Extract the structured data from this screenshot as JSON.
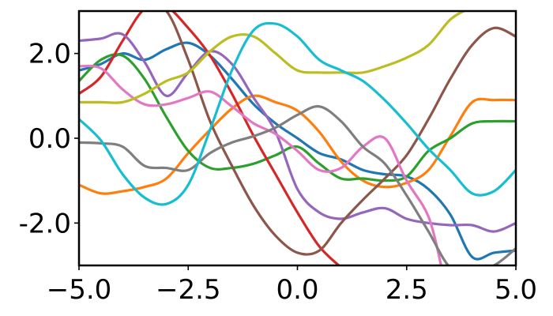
{
  "chart_data": {
    "type": "line",
    "title": "",
    "xlabel": "",
    "ylabel": "",
    "xlim": [
      -5,
      5
    ],
    "ylim": [
      -3,
      3
    ],
    "grid": false,
    "legend": "none",
    "x_ticks": [
      {
        "value": -5.0,
        "label": "−5.0"
      },
      {
        "value": -2.5,
        "label": "−2.5"
      },
      {
        "value": 0.0,
        "label": "0.0"
      },
      {
        "value": 2.5,
        "label": "2.5"
      },
      {
        "value": 5.0,
        "label": "5.0"
      }
    ],
    "y_ticks": [
      {
        "value": -2.0,
        "label": "-2.0"
      },
      {
        "value": 0.0,
        "label": "0.0"
      },
      {
        "value": 2.0,
        "label": "2.0"
      }
    ],
    "series": [
      {
        "color": "#1f77b4",
        "x": [
          -5,
          -4.5,
          -4,
          -3.5,
          -3,
          -2.5,
          -2,
          -1.5,
          -1,
          -0.5,
          0,
          0.5,
          1,
          1.5,
          2,
          2.5,
          3,
          3.5,
          4,
          4.5,
          5
        ],
        "y": [
          1.6,
          1.75,
          2.0,
          1.85,
          2.1,
          2.25,
          1.95,
          1.4,
          0.8,
          0.35,
          0.0,
          -0.35,
          -0.5,
          -0.75,
          -0.85,
          -0.9,
          -1.2,
          -1.8,
          -2.8,
          -2.7,
          -2.65
        ]
      },
      {
        "color": "#ff7f0e",
        "x": [
          -5,
          -4.5,
          -4,
          -3.5,
          -3,
          -2.5,
          -2,
          -1.5,
          -1,
          -0.5,
          0,
          0.5,
          1,
          1.5,
          2,
          2.5,
          3,
          3.5,
          4,
          4.5,
          5
        ],
        "y": [
          -1.1,
          -1.3,
          -1.25,
          -1.15,
          -0.95,
          -0.35,
          0.2,
          0.7,
          1.0,
          0.85,
          0.65,
          0.15,
          -0.55,
          -1.0,
          -1.15,
          -1.05,
          -0.75,
          0.05,
          0.85,
          0.9,
          0.9
        ]
      },
      {
        "color": "#2ca02c",
        "x": [
          -5,
          -4.5,
          -4,
          -3.5,
          -3,
          -2.5,
          -2,
          -1.5,
          -1,
          -0.5,
          0,
          0.5,
          1,
          1.5,
          2,
          2.5,
          3,
          3.5,
          4,
          4.5,
          5
        ],
        "y": [
          1.35,
          1.85,
          1.95,
          1.4,
          0.5,
          -0.3,
          -0.7,
          -0.7,
          -0.6,
          -0.4,
          -0.2,
          -0.6,
          -0.95,
          -0.95,
          -1.0,
          -0.9,
          -0.3,
          0.0,
          0.35,
          0.4,
          0.4
        ]
      },
      {
        "color": "#d62728",
        "x": [
          -5,
          -4.5,
          -4,
          -3.5,
          -3,
          -2.5,
          -2,
          -1.5,
          -1,
          -0.5,
          0,
          0.5,
          1
        ],
        "y": [
          1.05,
          1.45,
          2.3,
          3.05,
          3.1,
          2.6,
          1.95,
          1.05,
          0.05,
          -0.85,
          -1.75,
          -2.55,
          -3.05
        ]
      },
      {
        "color": "#9467bd",
        "x": [
          -5,
          -4.5,
          -4,
          -3.5,
          -3,
          -2.5,
          -2,
          -1.5,
          -1,
          -0.5,
          0,
          0.5,
          1,
          1.5,
          2,
          2.5,
          3,
          3.5,
          4,
          4.5,
          5
        ],
        "y": [
          2.3,
          2.35,
          2.45,
          1.8,
          1.0,
          1.55,
          2.05,
          1.75,
          0.95,
          0.15,
          -1.2,
          -1.75,
          -1.9,
          -1.75,
          -1.65,
          -1.9,
          -2.0,
          -2.05,
          -2.05,
          -2.2,
          -2.0
        ]
      },
      {
        "color": "#8c564b",
        "x": [
          -3.5,
          -3,
          -2.5,
          -2,
          -1.5,
          -1,
          -0.5,
          0,
          0.5,
          1,
          1.5,
          2,
          2.5,
          3,
          3.5,
          4,
          4.5,
          5
        ],
        "y": [
          3.05,
          3.0,
          1.85,
          0.4,
          -0.65,
          -1.6,
          -2.3,
          -2.7,
          -2.65,
          -2.0,
          -1.45,
          -0.95,
          -0.4,
          0.45,
          1.4,
          2.2,
          2.6,
          2.4
        ]
      },
      {
        "color": "#e377c2",
        "x": [
          -5,
          -4.5,
          -4,
          -3.5,
          -3,
          -2.5,
          -2,
          -1.5,
          -1,
          -0.5,
          0,
          0.5,
          1,
          1.5,
          2,
          2.5,
          3,
          3.3
        ],
        "y": [
          1.7,
          1.65,
          1.15,
          0.8,
          0.8,
          0.95,
          1.1,
          0.75,
          0.35,
          0.1,
          -0.3,
          -0.75,
          -0.7,
          -0.2,
          0.0,
          -1.0,
          -1.85,
          -3.05
        ]
      },
      {
        "color": "#7f7f7f",
        "x": [
          -5,
          -4.5,
          -4,
          -3.5,
          -3,
          -2.5,
          -2,
          -1.5,
          -1,
          -0.5,
          0,
          0.5,
          1,
          1.5,
          2,
          2.5,
          3,
          3.5,
          4,
          4.5,
          5
        ],
        "y": [
          -0.1,
          -0.12,
          -0.2,
          -0.65,
          -0.7,
          -0.75,
          -0.35,
          -0.1,
          0.05,
          0.25,
          0.55,
          0.75,
          0.4,
          -0.2,
          -0.6,
          -1.35,
          -2.2,
          -3.05,
          -3.1,
          -3.0,
          -2.6
        ]
      },
      {
        "color": "#bcbd22",
        "x": [
          -5,
          -4.5,
          -4,
          -3.5,
          -3,
          -2.5,
          -2,
          -1.5,
          -1,
          -0.5,
          0,
          0.5,
          1,
          1.5,
          2,
          2.5,
          3,
          3.5,
          3.9
        ],
        "y": [
          0.85,
          0.85,
          0.85,
          1.05,
          1.35,
          1.55,
          2.05,
          2.4,
          2.4,
          2.0,
          1.6,
          1.55,
          1.55,
          1.55,
          1.7,
          1.9,
          2.2,
          2.8,
          3.05
        ]
      },
      {
        "color": "#17becf",
        "x": [
          -5,
          -4.5,
          -4,
          -3.5,
          -3,
          -2.5,
          -2,
          -1.5,
          -1,
          -0.5,
          0,
          0.5,
          1,
          1.5,
          2,
          2.5,
          3,
          3.5,
          4,
          4.5,
          5
        ],
        "y": [
          0.45,
          -0.05,
          -0.85,
          -1.4,
          -1.55,
          -1.1,
          0.2,
          1.6,
          2.55,
          2.7,
          2.4,
          1.85,
          1.6,
          1.35,
          0.9,
          0.35,
          -0.25,
          -0.75,
          -1.3,
          -1.25,
          -0.75
        ]
      }
    ]
  }
}
